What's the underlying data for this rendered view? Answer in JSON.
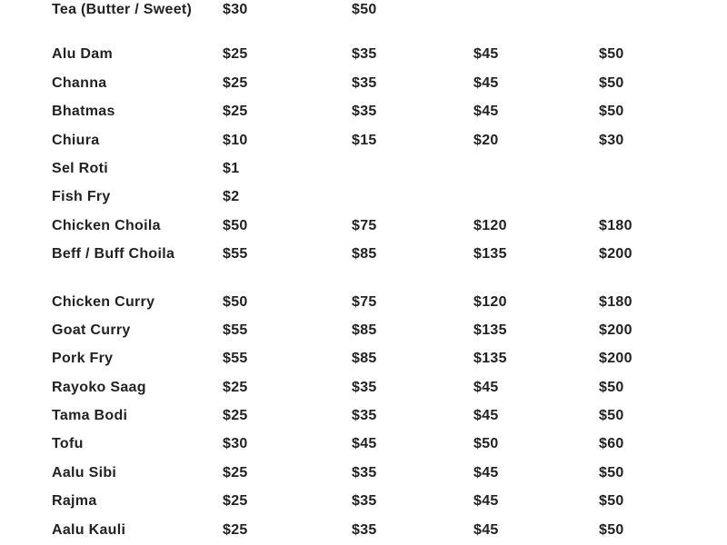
{
  "menu": {
    "groups": [
      [
        {
          "item": "Tea (Butter / Sweet)",
          "prices": [
            "$30",
            "$50",
            "",
            ""
          ]
        }
      ],
      [
        {
          "item": "Alu Dam",
          "prices": [
            "$25",
            "$35",
            "$45",
            "$50"
          ]
        },
        {
          "item": "Channa",
          "prices": [
            "$25",
            "$35",
            "$45",
            "$50"
          ]
        },
        {
          "item": "Bhatmas",
          "prices": [
            "$25",
            "$35",
            "$45",
            "$50"
          ]
        },
        {
          "item": "Chiura",
          "prices": [
            "$10",
            "$15",
            "$20",
            "$30"
          ]
        },
        {
          "item": "Sel Roti",
          "prices": [
            "$1",
            "",
            "",
            ""
          ]
        },
        {
          "item": "Fish Fry",
          "prices": [
            "$2",
            "",
            "",
            ""
          ]
        },
        {
          "item": "Chicken Choila",
          "prices": [
            "$50",
            "$75",
            "$120",
            "$180"
          ]
        },
        {
          "item": "Beff / Buff Choila",
          "prices": [
            "$55",
            "$85",
            "$135",
            "$200"
          ]
        }
      ],
      [
        {
          "item": "Chicken Curry",
          "prices": [
            "$50",
            "$75",
            "$120",
            "$180"
          ]
        },
        {
          "item": "Goat Curry",
          "prices": [
            "$55",
            "$85",
            "$135",
            "$200"
          ]
        },
        {
          "item": "Pork Fry",
          "prices": [
            "$55",
            "$85",
            "$135",
            "$200"
          ]
        },
        {
          "item": "Rayoko Saag",
          "prices": [
            "$25",
            "$35",
            "$45",
            "$50"
          ]
        },
        {
          "item": "Tama Bodi",
          "prices": [
            "$25",
            "$35",
            "$45",
            "$50"
          ]
        },
        {
          "item": "Tofu",
          "prices": [
            "$30",
            "$45",
            "$50",
            "$60"
          ]
        },
        {
          "item": "Aalu Sibi",
          "prices": [
            "$25",
            "$35",
            "$45",
            "$50"
          ]
        },
        {
          "item": "Rajma",
          "prices": [
            "$25",
            "$35",
            "$45",
            "$50"
          ]
        },
        {
          "item": "Aalu Kauli",
          "prices": [
            "$25",
            "$35",
            "$45",
            "$50"
          ]
        }
      ]
    ]
  }
}
